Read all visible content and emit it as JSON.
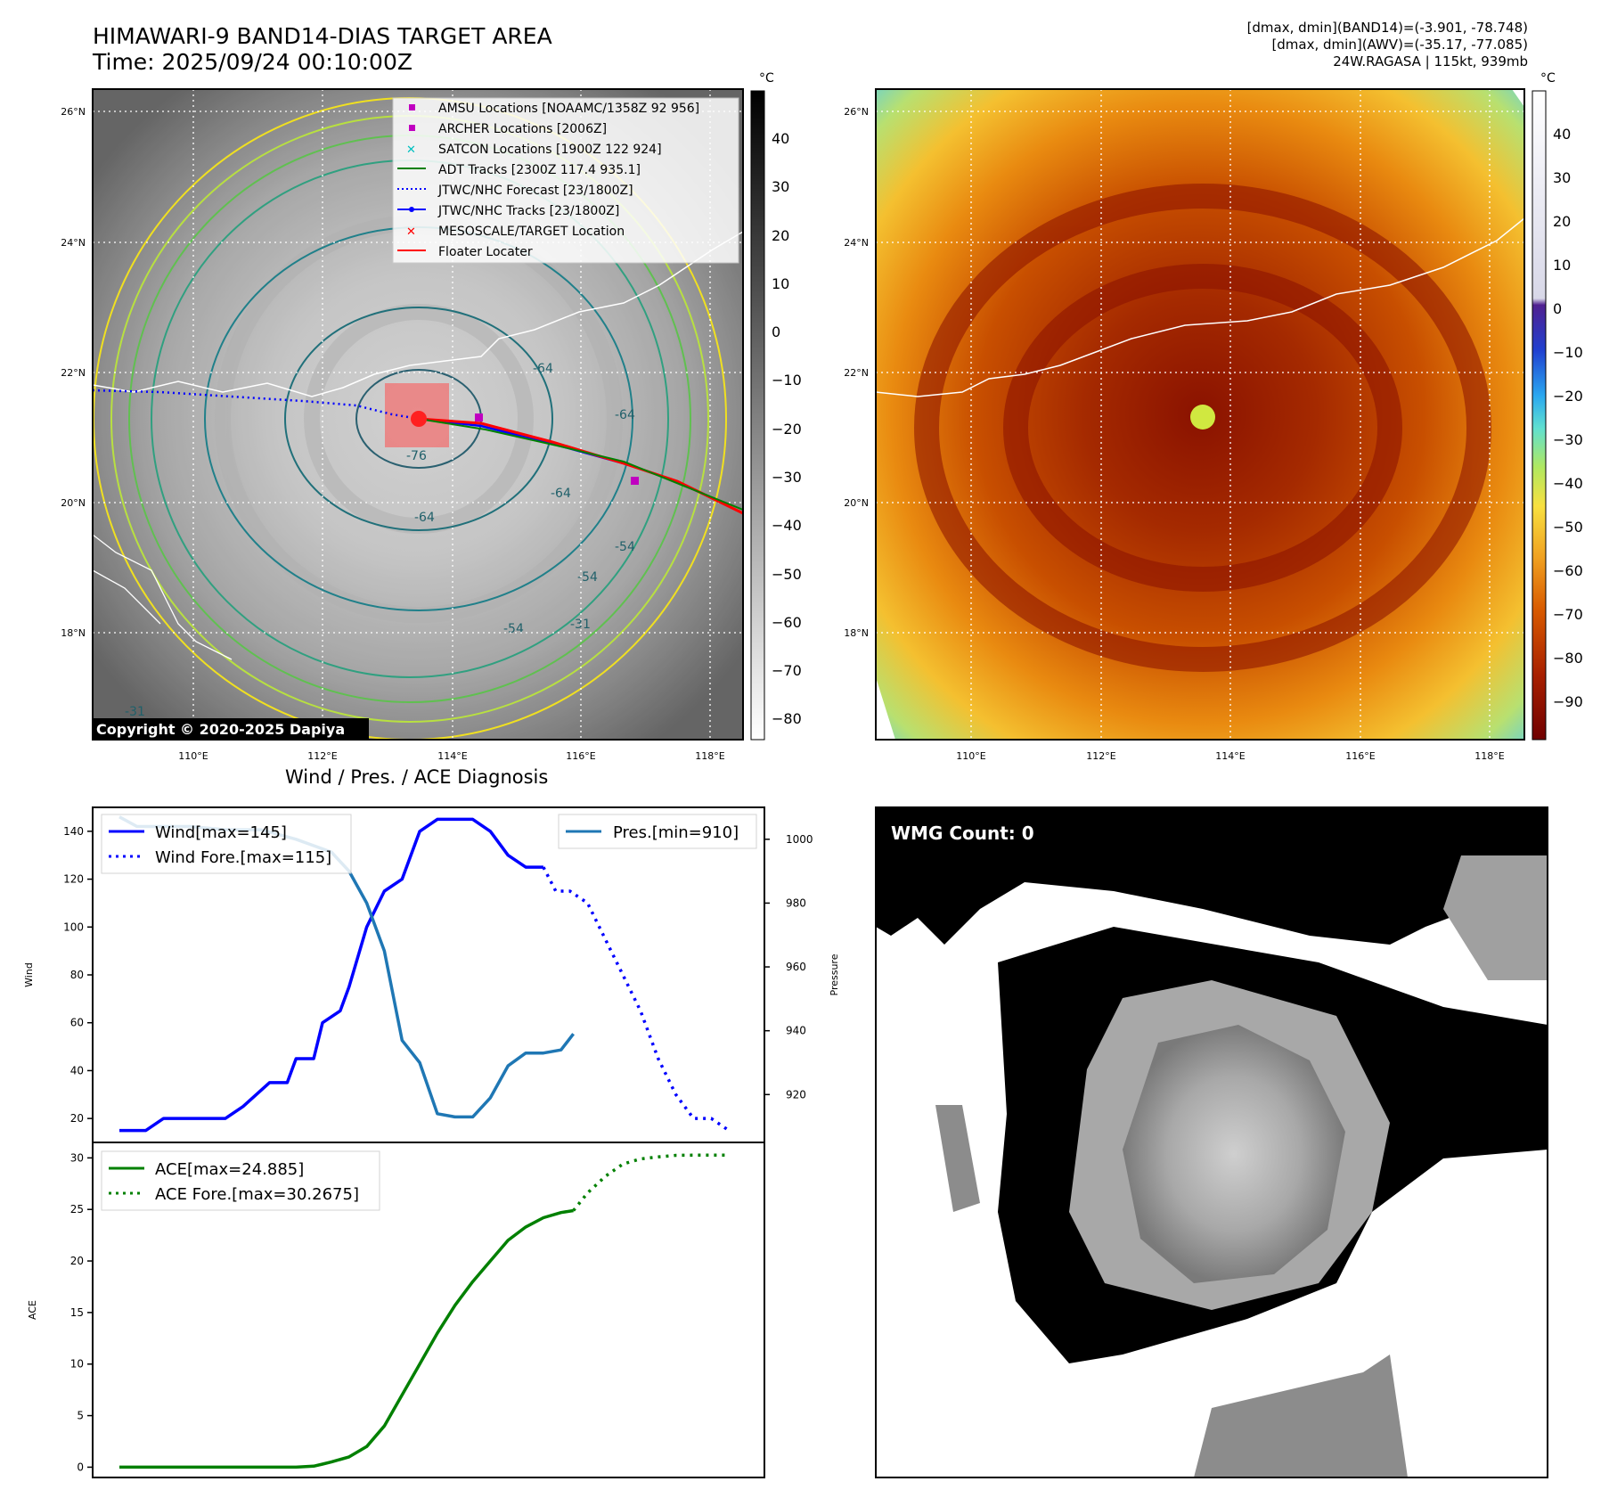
{
  "header": {
    "title_line1": "HIMAWARI-9 BAND14-DIAS TARGET AREA",
    "title_line2": "Time: 2025/09/24 00:10:00Z",
    "info_line1": "[dmax, dmin](BAND14)=(-3.901, -78.748)",
    "info_line2": "[dmax, dmin](AWV)=(-35.17, -77.085)",
    "info_line3": "24W.RAGASA | 115kt, 939mb"
  },
  "ir_map": {
    "lat_labels": [
      "26°N",
      "24°N",
      "22°N",
      "20°N",
      "18°N"
    ],
    "lon_labels": [
      "110°E",
      "112°E",
      "114°E",
      "116°E",
      "118°E"
    ],
    "contour_labels": [
      "-64",
      "-64",
      "-76",
      "-64",
      "-54",
      "-64",
      "-54",
      "-31",
      "-31",
      "-54"
    ],
    "copyright": "Copyright © 2020-2025 Dapiya",
    "legend": [
      {
        "label": "AMSU Locations [NOAAMC/1358Z 92 956]",
        "marker": "square",
        "color": "#c000c0"
      },
      {
        "label": "ARCHER Locations [2006Z]",
        "marker": "square",
        "color": "#c000c0"
      },
      {
        "label": "SATCON Locations [1900Z 122 924]",
        "marker": "x",
        "color": "#00c0c0"
      },
      {
        "label": "ADT Tracks [2300Z 117.4 935.1]",
        "marker": "line",
        "color": "#008000"
      },
      {
        "label": "JTWC/NHC Forecast [23/1800Z]",
        "marker": "dotted",
        "color": "#0000ff"
      },
      {
        "label": "JTWC/NHC Tracks [23/1800Z]",
        "marker": "line-dot",
        "color": "#0000ff"
      },
      {
        "label": "MESOSCALE/TARGET Location",
        "marker": "x",
        "color": "#ff0000"
      },
      {
        "label": "Floater Locater",
        "marker": "line",
        "color": "#ff0000"
      }
    ],
    "colorbar_unit": "°C",
    "colorbar_ticks": [
      "40",
      "30",
      "20",
      "10",
      "0",
      "−10",
      "−20",
      "−30",
      "−40",
      "−50",
      "−60",
      "−70",
      "−80"
    ]
  },
  "awv_map": {
    "lat_labels": [
      "26°N",
      "24°N",
      "22°N",
      "20°N",
      "18°N"
    ],
    "lon_labels": [
      "110°E",
      "112°E",
      "114°E",
      "116°E",
      "118°E"
    ],
    "colorbar_unit": "°C",
    "colorbar_ticks": [
      "40",
      "30",
      "20",
      "10",
      "0",
      "−10",
      "−20",
      "−30",
      "−40",
      "−50",
      "−60",
      "−70",
      "−80",
      "−90"
    ]
  },
  "wmg": {
    "label": "WMG Count: 0"
  },
  "chart_data": [
    {
      "type": "line",
      "title": "Wind / Pres. / ACE Diagnosis",
      "ylabel": "Wind",
      "ylabel_right": "Pressure",
      "ylim": [
        10,
        150
      ],
      "ylim_right": [
        905,
        1010
      ],
      "yticks": [
        20,
        40,
        60,
        80,
        100,
        120,
        140
      ],
      "yticks_right": [
        920,
        940,
        960,
        980,
        1000
      ],
      "xlim": [
        0,
        35
      ],
      "series": [
        {
          "name": "Wind[max=145]",
          "style": "solid",
          "color": "#0000ff",
          "axis": "left",
          "x": [
            0,
            1.5,
            2.5,
            3,
            4,
            6,
            7,
            8.5,
            9.5,
            10,
            11,
            11.5,
            12.5,
            13,
            14,
            15,
            16,
            17,
            18,
            19,
            20,
            21,
            22,
            23,
            24
          ],
          "values": [
            15,
            15,
            20,
            20,
            20,
            20,
            25,
            35,
            35,
            45,
            45,
            60,
            65,
            75,
            100,
            115,
            120,
            140,
            145,
            145,
            145,
            140,
            130,
            125,
            125
          ]
        },
        {
          "name": "Wind Fore.[max=115]",
          "style": "dotted",
          "color": "#0000ff",
          "axis": "left",
          "x": [
            24,
            24.7,
            25.5,
            26.5,
            27.5,
            28.5,
            29.5,
            30.5,
            31.5,
            32.5,
            33.5,
            34.5
          ],
          "values": [
            125,
            115,
            115,
            110,
            95,
            80,
            65,
            45,
            30,
            20,
            20,
            15
          ]
        },
        {
          "name": "Pres.[min=910]",
          "style": "solid",
          "color": "#1f77b4",
          "axis": "right",
          "x": [
            0,
            1,
            2,
            4,
            6,
            8,
            10,
            11,
            12,
            13,
            14,
            15,
            16,
            17,
            18,
            19,
            20,
            21,
            22,
            23,
            24,
            25,
            25.7
          ],
          "values": [
            1007,
            1004,
            1004,
            1004,
            1003,
            1003,
            1000,
            998,
            996,
            990,
            980,
            965,
            937,
            930,
            914,
            913,
            913,
            919,
            929,
            933,
            933,
            934,
            939
          ]
        }
      ]
    },
    {
      "type": "line",
      "ylabel": "ACE",
      "ylim": [
        -1,
        31.5
      ],
      "yticks": [
        0,
        5,
        10,
        15,
        20,
        25,
        30
      ],
      "xlim": [
        0,
        35
      ],
      "series": [
        {
          "name": "ACE[max=24.885]",
          "style": "solid",
          "color": "#008000",
          "x": [
            0,
            2,
            4,
            6,
            8,
            9,
            10,
            11,
            11.5,
            12,
            13,
            14,
            15,
            16,
            17,
            18,
            19,
            20,
            21,
            22,
            23,
            24,
            25,
            25.7
          ],
          "values": [
            0,
            0,
            0,
            0,
            0,
            0,
            0,
            0.1,
            0.3,
            0.5,
            1,
            2,
            4,
            7,
            10,
            13,
            15.7,
            18,
            20,
            22,
            23.3,
            24.2,
            24.7,
            24.885
          ]
        },
        {
          "name": "ACE Fore.[max=30.2675]",
          "style": "dotted",
          "color": "#008000",
          "x": [
            25.7,
            26.5,
            27.5,
            28.5,
            29.5,
            30.5,
            31.5,
            32.5,
            33.5,
            34.5
          ],
          "values": [
            24.885,
            26.6,
            28.2,
            29.4,
            29.9,
            30.1,
            30.25,
            30.2675,
            30.2675,
            30.2675
          ]
        }
      ]
    }
  ]
}
